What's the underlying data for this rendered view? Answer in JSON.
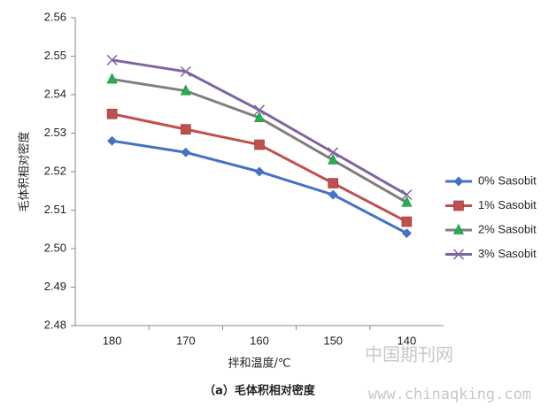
{
  "chart_data": {
    "type": "line",
    "y_label": "毛体积相对密度",
    "x_label": "拌和温度/℃",
    "caption": "（a）毛体积相对密度",
    "watermark": [
      "中国期刊网",
      "www.chinaqking.com"
    ],
    "categories": [
      "180",
      "170",
      "160",
      "150",
      "140"
    ],
    "series": [
      {
        "name": "0% Sasobit",
        "color": "#4472c4",
        "marker": "diamond",
        "values": [
          2.528,
          2.525,
          2.52,
          2.514,
          2.504
        ]
      },
      {
        "name": "1% Sasobit",
        "color": "#c0504d",
        "marker": "square",
        "values": [
          2.535,
          2.531,
          2.527,
          2.517,
          2.507
        ]
      },
      {
        "name": "2% Sasobit",
        "color": "#7f7f7f",
        "marker": "triangle",
        "values": [
          2.544,
          2.541,
          2.534,
          2.523,
          2.512
        ]
      },
      {
        "name": "3% Sasobit",
        "color": "#8064a2",
        "marker": "x",
        "values": [
          2.549,
          2.546,
          2.536,
          2.525,
          2.514
        ]
      }
    ],
    "ylim": [
      2.48,
      2.56
    ],
    "yticks": [
      2.48,
      2.49,
      {
        "value": 2.5,
        "label": "2.50"
      },
      2.51,
      2.52,
      2.53,
      2.54,
      2.55,
      2.56
    ],
    "grid": false,
    "legend": "right"
  }
}
